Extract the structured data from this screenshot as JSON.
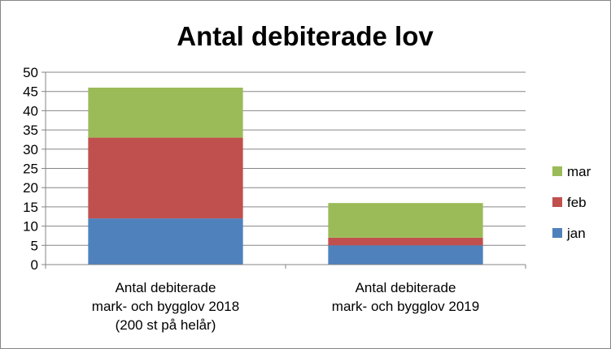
{
  "chart_data": {
    "type": "bar",
    "stacked": true,
    "title": "Antal debiterade lov",
    "xlabel": "",
    "ylabel": "",
    "ylim": [
      0,
      50
    ],
    "yticks": [
      0,
      5,
      10,
      15,
      20,
      25,
      30,
      35,
      40,
      45,
      50
    ],
    "grid": true,
    "legend_position": "right",
    "categories": [
      [
        "Antal debiterade",
        "mark- och bygglov 2018",
        "(200 st på helår)"
      ],
      [
        "Antal debiterade",
        "mark- och bygglov 2019"
      ]
    ],
    "series": [
      {
        "name": "jan",
        "color": "#4f81bd",
        "values": [
          12,
          5
        ]
      },
      {
        "name": "feb",
        "color": "#c0504d",
        "values": [
          21,
          2
        ]
      },
      {
        "name": "mar",
        "color": "#9bbb59",
        "values": [
          13,
          9
        ]
      }
    ]
  }
}
